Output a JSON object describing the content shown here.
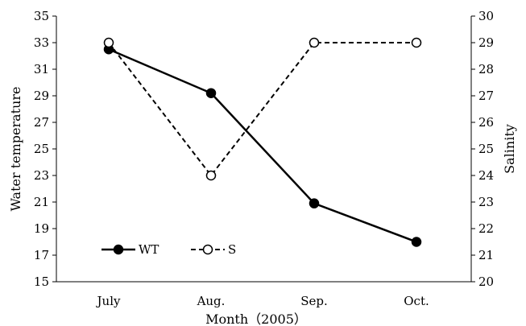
{
  "chart_data": {
    "type": "line",
    "categories": [
      "July",
      "Aug.",
      "Sep.",
      "Oct."
    ],
    "series": [
      {
        "name": "WT",
        "axis": "left",
        "values": [
          32.5,
          29.2,
          20.9,
          18.0
        ],
        "line_style": "solid",
        "marker": "filled-circle",
        "color": "#000000"
      },
      {
        "name": "S",
        "axis": "right",
        "values": [
          29,
          24,
          29,
          29
        ],
        "line_style": "dashed",
        "marker": "open-circle",
        "color": "#000000"
      }
    ],
    "xlabel": "Month（2005）",
    "ylabel_left": "Water temperature",
    "ylabel_right": "Salinity",
    "ylim_left": [
      15,
      35
    ],
    "yticks_left": [
      "15",
      "17",
      "19",
      "21",
      "23",
      "25",
      "27",
      "29",
      "31",
      "33",
      "35"
    ],
    "ylim_right": [
      20,
      30
    ],
    "yticks_right": [
      "20",
      "21",
      "22",
      "23",
      "24",
      "25",
      "26",
      "27",
      "28",
      "29",
      "30"
    ],
    "grid": false,
    "legend_position": "bottom-left"
  }
}
